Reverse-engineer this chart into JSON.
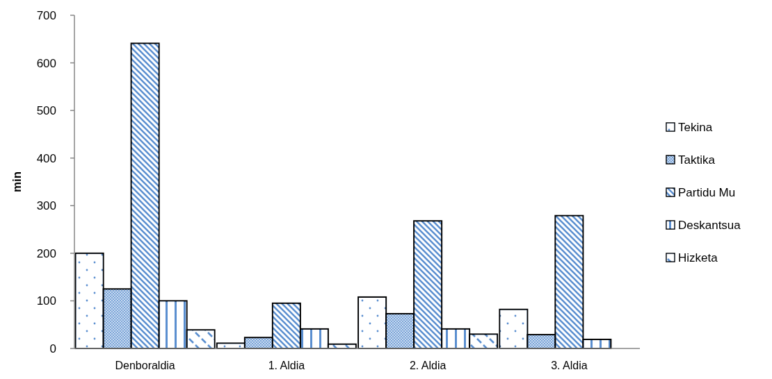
{
  "chart_data": {
    "type": "bar",
    "ylabel": "min",
    "categories": [
      "Denboraldia",
      "1. Aldia",
      "2. Aldia",
      "3. Aldia"
    ],
    "series": [
      {
        "name": "Tekina",
        "color": "#5b8fd0",
        "values": [
          200,
          11,
          108,
          82
        ]
      },
      {
        "name": "Taktika",
        "color": "#5b8fd0",
        "values": [
          125,
          23,
          73,
          29
        ]
      },
      {
        "name": "Partidu Mu",
        "color": "#5b8fd0",
        "values": [
          641,
          95,
          268,
          279
        ]
      },
      {
        "name": "Deskantsua",
        "color": "#5b8fd0",
        "values": [
          100,
          41,
          41,
          19
        ]
      },
      {
        "name": "Hizketa",
        "color": "#5b8fd0",
        "values": [
          39,
          9,
          30,
          null
        ]
      }
    ],
    "ylim": [
      0,
      700
    ],
    "yticks": [
      0,
      100,
      200,
      300,
      400,
      500,
      600,
      700
    ],
    "legend": "right"
  }
}
